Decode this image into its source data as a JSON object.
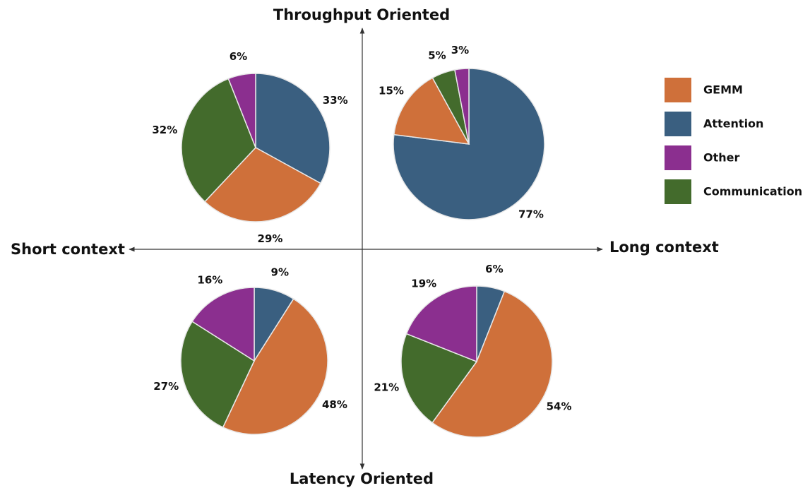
{
  "axes": {
    "top": "Throughput Oriented",
    "bottom": "Latency Oriented",
    "left": "Short context",
    "right": "Long context"
  },
  "legend": {
    "items": [
      {
        "name": "GEMM",
        "color": "#cf703a"
      },
      {
        "name": "Attention",
        "color": "#3a5f80"
      },
      {
        "name": "Other",
        "color": "#8b2f8f"
      },
      {
        "name": "Communication",
        "color": "#436b2c"
      }
    ]
  },
  "chart_data": [
    {
      "type": "pie",
      "values": [
        33,
        29,
        32,
        6
      ],
      "value_labels": [
        "33%",
        "29%",
        "32%",
        "6%"
      ],
      "colors": [
        "#3a5f80",
        "#cf703a",
        "#436b2c",
        "#8b2f8f"
      ]
    },
    {
      "type": "pie",
      "values": [
        77,
        15,
        5,
        3
      ],
      "value_labels": [
        "77%",
        "15%",
        "5%",
        "3%"
      ],
      "colors": [
        "#3a5f80",
        "#cf703a",
        "#436b2c",
        "#8b2f8f"
      ]
    },
    {
      "type": "pie",
      "values": [
        9,
        48,
        27,
        16
      ],
      "value_labels": [
        "9%",
        "48%",
        "27%",
        "16%"
      ],
      "colors": [
        "#3a5f80",
        "#cf703a",
        "#436b2c",
        "#8b2f8f"
      ]
    },
    {
      "type": "pie",
      "values": [
        6,
        54,
        21,
        19
      ],
      "value_labels": [
        "6%",
        "54%",
        "21%",
        "19%"
      ],
      "colors": [
        "#3a5f80",
        "#cf703a",
        "#436b2c",
        "#8b2f8f"
      ]
    }
  ]
}
